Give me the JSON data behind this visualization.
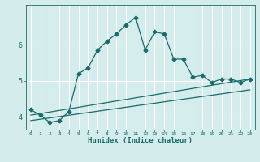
{
  "xlabel": "Humidex (Indice chaleur)",
  "bg_color": "#d4ecec",
  "grid_color": "#ffffff",
  "line_color": "#1a6b6b",
  "xlim": [
    -0.5,
    23.5
  ],
  "ylim": [
    3.65,
    7.1
  ],
  "x_ticks": [
    0,
    1,
    2,
    3,
    4,
    5,
    6,
    7,
    8,
    9,
    10,
    11,
    12,
    13,
    14,
    15,
    16,
    17,
    18,
    19,
    20,
    21,
    22,
    23
  ],
  "y_ticks": [
    4,
    5,
    6
  ],
  "main_x": [
    0,
    1,
    2,
    3,
    4,
    5,
    6,
    7,
    8,
    9,
    10,
    11,
    12,
    13,
    14,
    15,
    16,
    17,
    18,
    19,
    20,
    21,
    22,
    23
  ],
  "main_y": [
    4.2,
    4.05,
    3.85,
    3.9,
    4.15,
    5.2,
    5.35,
    5.85,
    6.1,
    6.3,
    6.55,
    6.75,
    5.85,
    6.35,
    6.3,
    5.6,
    5.6,
    5.1,
    5.15,
    4.95,
    5.05,
    5.05,
    4.95,
    5.05
  ],
  "line2_x": [
    0,
    23
  ],
  "line2_y": [
    4.05,
    5.05
  ],
  "line3_x": [
    0,
    23
  ],
  "line3_y": [
    3.9,
    4.75
  ],
  "x_tick_fontsize": 4.5,
  "y_tick_fontsize": 6.0,
  "xlabel_fontsize": 6.5,
  "marker_size": 2.5,
  "linewidth": 0.9
}
